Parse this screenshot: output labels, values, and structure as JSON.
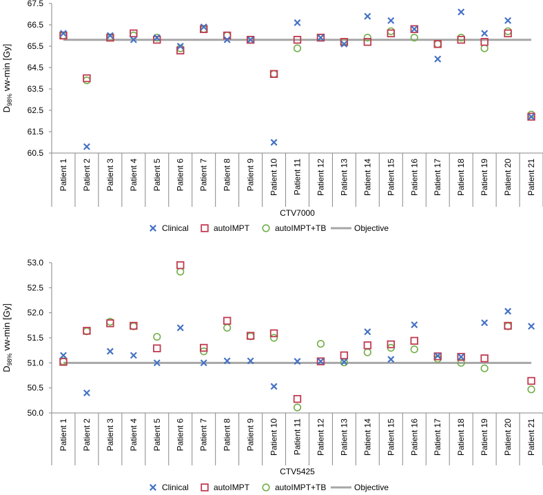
{
  "colors": {
    "clinical": "#4472c4",
    "autoIMPT": "#c0394f",
    "autoIMPT_TB": "#70ad47",
    "objective": "#a6a6a6",
    "axis": "#868686"
  },
  "legend": {
    "clinical": "Clinical",
    "autoIMPT": "autoIMPT",
    "autoIMPT_TB": "autoIMPT+TB",
    "objective": "Objective"
  },
  "chart_data": [
    {
      "type": "scatter",
      "title": "",
      "xlabel": "CTV7000",
      "ylabel_main": "D",
      "ylabel_sub": "98%",
      "ylabel_rest": " vw-min [Gy]",
      "ylim": [
        60.5,
        67.5
      ],
      "yticks": [
        "60.5",
        "61.5",
        "62.5",
        "63.5",
        "64.5",
        "65.5",
        "66.5",
        "67.5"
      ],
      "categories": [
        "Patient 1",
        "Patient 2",
        "Patient 3",
        "Patient 4",
        "Patient 5",
        "Patient 6",
        "Patient 7",
        "Patient 8",
        "Patient 9",
        "Patient 10",
        "Patient 11",
        "Patient 12",
        "Patient 13",
        "Patient 14",
        "Patient 15",
        "Patient 16",
        "Patient 17",
        "Patient 18",
        "Patient 19",
        "Patient 20",
        "Patient 21"
      ],
      "objective": 65.8,
      "series": [
        {
          "name": "Clinical",
          "marker": "asterisk",
          "values": [
            66.1,
            60.8,
            66.0,
            65.8,
            65.9,
            65.5,
            66.4,
            65.8,
            65.8,
            61.0,
            66.6,
            65.9,
            65.6,
            66.9,
            66.7,
            66.3,
            64.9,
            67.1,
            66.1,
            66.7,
            62.2
          ]
        },
        {
          "name": "autoIMPT",
          "marker": "square",
          "values": [
            66.0,
            64.0,
            65.9,
            66.1,
            65.8,
            65.3,
            66.3,
            66.0,
            65.8,
            64.2,
            65.8,
            65.9,
            65.7,
            65.7,
            66.1,
            66.3,
            65.6,
            65.8,
            65.7,
            66.1,
            62.2
          ]
        },
        {
          "name": "autoIMPT+TB",
          "marker": "circle",
          "values": [
            66.0,
            63.9,
            65.9,
            66.0,
            65.9,
            65.4,
            66.3,
            66.0,
            65.8,
            64.2,
            65.4,
            65.9,
            65.7,
            65.9,
            66.2,
            65.9,
            65.6,
            65.9,
            65.4,
            66.2,
            62.3
          ]
        },
        {
          "name": "Objective",
          "marker": "line",
          "values": []
        }
      ]
    },
    {
      "type": "scatter",
      "title": "",
      "xlabel": "CTV5425",
      "ylabel_main": "D",
      "ylabel_sub": "98%",
      "ylabel_rest": " vw-min [Gy]",
      "ylim": [
        50.0,
        53.0
      ],
      "yticks": [
        "50.0",
        "50.5",
        "51.0",
        "51.5",
        "52.0",
        "52.5",
        "53.0"
      ],
      "categories": [
        "Patient 1",
        "Patient 2",
        "Patient 3",
        "Patient 4",
        "Patient 5",
        "Patient 6",
        "Patient 7",
        "Patient 8",
        "Patient 9",
        "Patient 10",
        "Patient 11",
        "Patient 12",
        "Patient 13",
        "Patient 14",
        "Patient 15",
        "Patient 16",
        "Patient 17",
        "Patient 18",
        "Patient 19",
        "Patient 20",
        "Patient 21"
      ],
      "objective": 51.0,
      "series": [
        {
          "name": "Clinical",
          "marker": "asterisk",
          "values": [
            51.15,
            50.4,
            51.23,
            51.15,
            51.0,
            51.7,
            51.0,
            51.04,
            51.04,
            50.53,
            51.03,
            51.03,
            51.02,
            51.62,
            51.07,
            51.76,
            51.14,
            51.12,
            51.8,
            52.03,
            51.73
          ]
        },
        {
          "name": "autoIMPT",
          "marker": "square",
          "values": [
            51.02,
            51.64,
            51.79,
            51.74,
            51.29,
            52.95,
            51.3,
            51.84,
            51.54,
            51.59,
            50.28,
            51.03,
            51.15,
            51.35,
            51.37,
            51.44,
            51.13,
            51.12,
            51.09,
            51.74,
            50.64
          ]
        },
        {
          "name": "autoIMPT+TB",
          "marker": "circle",
          "values": [
            51.03,
            51.63,
            51.82,
            51.73,
            51.52,
            52.82,
            51.23,
            51.7,
            51.53,
            51.5,
            50.11,
            51.38,
            51.01,
            51.21,
            51.3,
            51.27,
            51.08,
            51.0,
            50.89,
            51.73,
            50.47
          ]
        },
        {
          "name": "Objective",
          "marker": "line",
          "values": []
        }
      ]
    }
  ]
}
